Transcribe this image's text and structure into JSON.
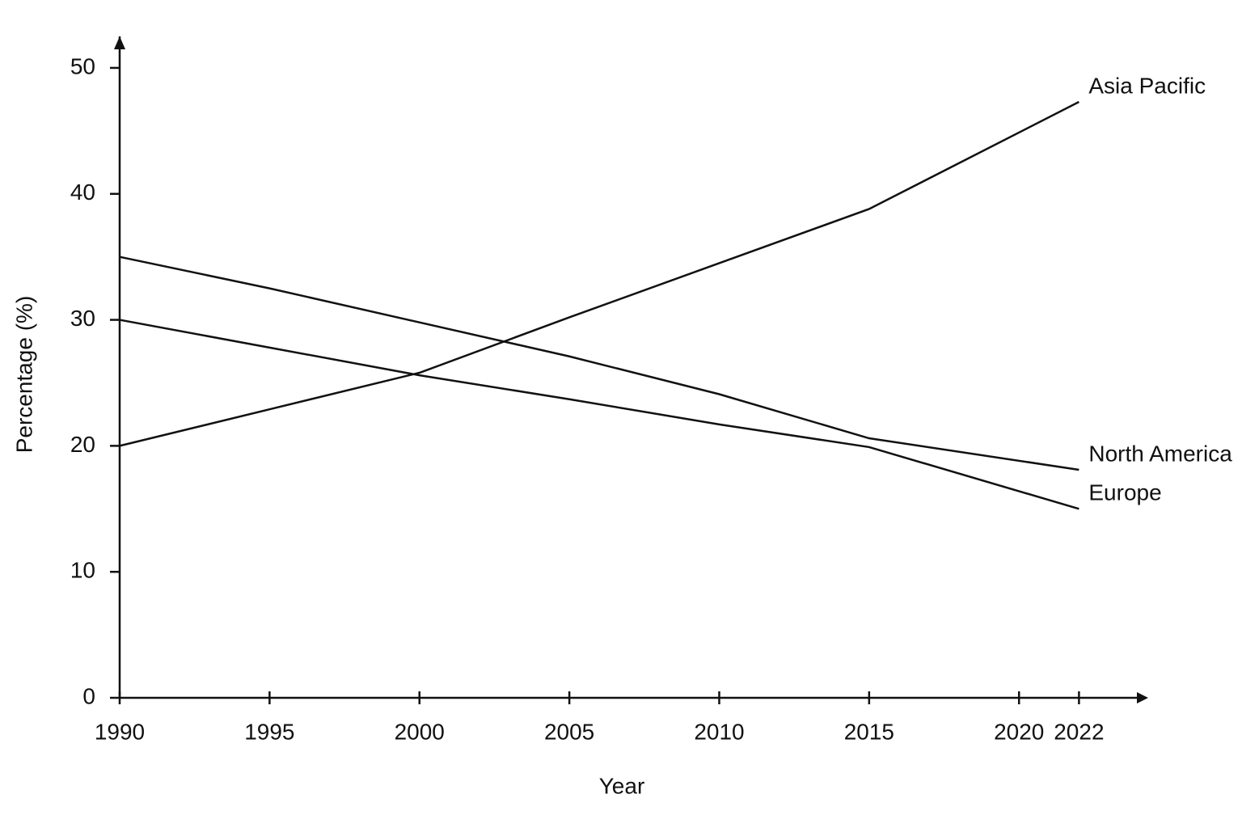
{
  "chart_data": {
    "type": "line",
    "x_label": "Year",
    "y_label": "Percentage (%)",
    "x": [
      1990,
      1995,
      2000,
      2005,
      2010,
      2015,
      2022
    ],
    "series": [
      {
        "name": "North America",
        "color": "#111111",
        "values": [
          35,
          32.5,
          29.8,
          27.1,
          24.1,
          20.6,
          18.1
        ]
      },
      {
        "name": "Europe",
        "color": "#111111",
        "values": [
          30,
          27.8,
          25.6,
          23.7,
          21.7,
          19.9,
          15.0
        ]
      },
      {
        "name": "Asia Pacific",
        "color": "#111111",
        "values": [
          20,
          22.9,
          25.8,
          30.2,
          34.5,
          38.8,
          47.3
        ]
      }
    ],
    "xlim": [
      1990,
      2023.5
    ],
    "ylim": [
      0,
      52.5
    ],
    "xticks": [
      1990,
      1995,
      2000,
      2005,
      2010,
      2015,
      2020,
      2022
    ],
    "yticks": [
      0,
      10,
      20,
      30,
      40,
      50
    ],
    "grid": false
  }
}
